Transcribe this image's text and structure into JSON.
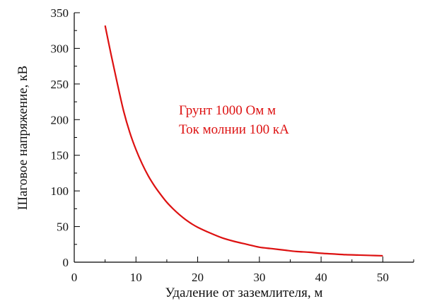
{
  "colors": {
    "curve": "#dd1111",
    "annotation": "#dd1111",
    "axis": "#000000"
  },
  "chart_data": {
    "type": "line",
    "title": "",
    "xlabel": "Удаление от заземлителя,  м",
    "ylabel": "Шаговое напряжение,  кВ",
    "xlim": [
      0,
      55
    ],
    "ylim": [
      0,
      350
    ],
    "xticks": [
      0,
      10,
      20,
      30,
      40,
      50
    ],
    "yticks": [
      0,
      50,
      100,
      150,
      200,
      250,
      300,
      350
    ],
    "grid": false,
    "annotations": [
      "Грунт 1000 Ом м",
      "Ток молнии 100 кА"
    ],
    "series": [
      {
        "x": [
          5,
          6,
          7,
          8,
          9,
          10,
          11,
          12,
          13,
          14,
          15,
          16,
          17,
          18,
          19,
          20,
          22,
          24,
          26,
          28,
          30,
          32,
          34,
          36,
          38,
          40,
          42,
          44,
          46,
          48,
          50
        ],
        "y": [
          332,
          290,
          250,
          212,
          182,
          158,
          138,
          121,
          107,
          95,
          84,
          75,
          67,
          60,
          54,
          49,
          41,
          34,
          29,
          25,
          21,
          19,
          17,
          15,
          14,
          12.5,
          11.5,
          10.5,
          10,
          9.5,
          9
        ]
      }
    ]
  }
}
